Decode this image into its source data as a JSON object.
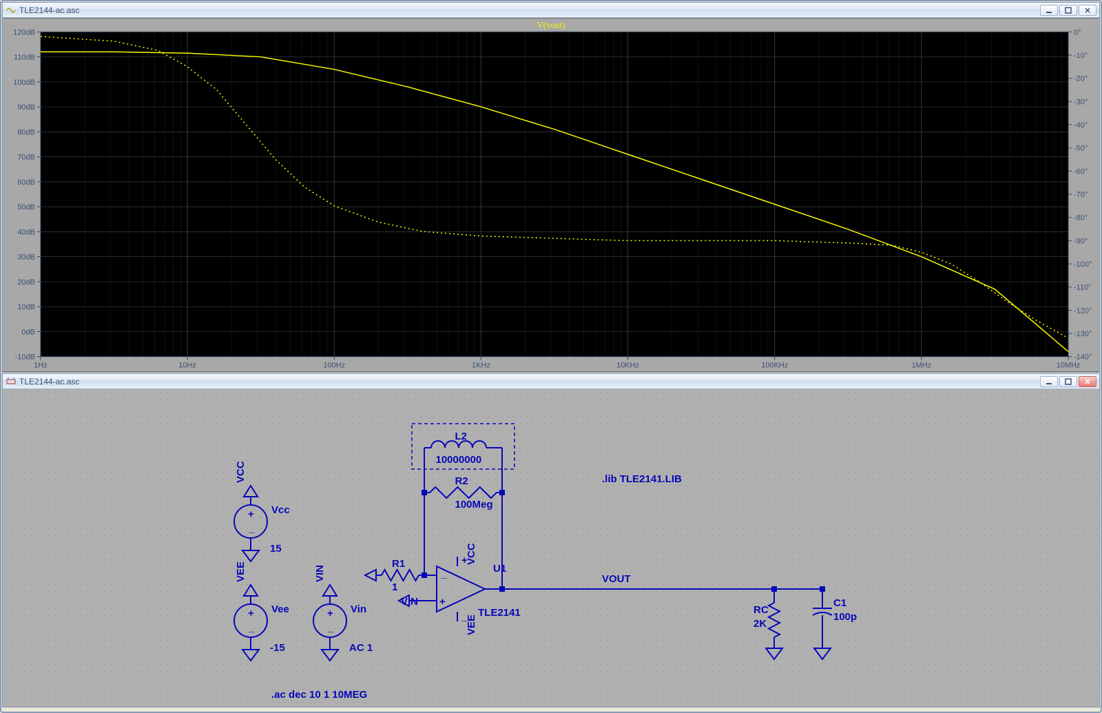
{
  "plot_window": {
    "title": "TLE2144-ac.asc",
    "trace_label": "V(vout)",
    "trace_color": "#f9f900",
    "background": "#000000",
    "grid_color": "#3e3e3e",
    "axis_text_color": "#2f4963",
    "y_left": {
      "min_db": -10,
      "max_db": 120,
      "step": 10,
      "labels": [
        "-10dB",
        "0dB",
        "10dB",
        "20dB",
        "30dB",
        "40dB",
        "50dB",
        "60dB",
        "70dB",
        "80dB",
        "90dB",
        "100dB",
        "110dB",
        "120dB"
      ]
    },
    "y_right": {
      "min_deg": -140,
      "max_deg": 0,
      "step": 10,
      "labels": [
        "-140°",
        "-130°",
        "-120°",
        "-110°",
        "-100°",
        "-90°",
        "-80°",
        "-70°",
        "-60°",
        "-50°",
        "-40°",
        "-30°",
        "-20°",
        "-10°",
        "0°"
      ]
    },
    "x_axis": {
      "scale": "log",
      "decade_labels": [
        "1Hz",
        "10Hz",
        "100Hz",
        "1KHz",
        "10KHz",
        "100KHz",
        "1MHz",
        "10MHz"
      ]
    },
    "mag_series_db": [
      [
        0,
        112
      ],
      [
        0.5,
        112
      ],
      [
        1,
        111.5
      ],
      [
        1.5,
        110
      ],
      [
        2,
        105
      ],
      [
        2.5,
        98
      ],
      [
        3,
        90
      ],
      [
        3.5,
        81
      ],
      [
        4,
        71
      ],
      [
        4.5,
        61
      ],
      [
        5,
        51
      ],
      [
        5.5,
        41
      ],
      [
        6,
        30
      ],
      [
        6.5,
        17
      ],
      [
        7,
        -8
      ]
    ],
    "phase_series_deg": [
      [
        0,
        -2
      ],
      [
        0.5,
        -4
      ],
      [
        0.8,
        -8
      ],
      [
        1.0,
        -15
      ],
      [
        1.2,
        -25
      ],
      [
        1.4,
        -40
      ],
      [
        1.6,
        -55
      ],
      [
        1.8,
        -67
      ],
      [
        2.0,
        -75
      ],
      [
        2.3,
        -82
      ],
      [
        2.6,
        -86
      ],
      [
        3.0,
        -88
      ],
      [
        3.5,
        -89
      ],
      [
        4.0,
        -90
      ],
      [
        4.5,
        -90
      ],
      [
        5.0,
        -90
      ],
      [
        5.5,
        -91
      ],
      [
        5.8,
        -92
      ],
      [
        6.0,
        -95
      ],
      [
        6.2,
        -100
      ],
      [
        6.4,
        -108
      ],
      [
        6.6,
        -117
      ],
      [
        6.8,
        -125
      ],
      [
        7.0,
        -132
      ]
    ]
  },
  "schem_window": {
    "title": "TLE2144-ac.asc",
    "directive_lib": ".lib TLE2141.LIB",
    "directive_ac": ".ac dec 10 1 10MEG",
    "components": {
      "L2": {
        "name": "L2",
        "value": "10000000"
      },
      "R2": {
        "name": "R2",
        "value": "100Meg"
      },
      "R1": {
        "name": "R1",
        "value": "1"
      },
      "U1": {
        "name": "U1",
        "model": "TLE2141",
        "vcc": "VCC",
        "vee": "VEE",
        "vin": "VIN"
      },
      "Vcc": {
        "flag": "VCC",
        "name": "Vcc",
        "value": "15"
      },
      "Vee": {
        "flag": "VEE",
        "name": "Vee",
        "value": "-15"
      },
      "Vin": {
        "flag": "VIN",
        "name": "Vin",
        "value": "AC 1"
      },
      "RC": {
        "name": "RC",
        "value": "2K"
      },
      "C1": {
        "name": "C1",
        "value": "100p"
      },
      "vout_label": "VOUT"
    },
    "colors": {
      "wire": "#0707b8",
      "text": "#0707b8",
      "grid_bg": "#b0b0b0"
    }
  }
}
